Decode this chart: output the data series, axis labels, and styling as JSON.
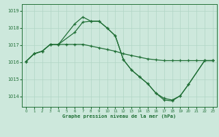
{
  "title": "Graphe pression niveau de la mer (hPa)",
  "bg_color": "#cde8dc",
  "grid_color": "#b0d4c4",
  "line_color": "#1f6e35",
  "xlim": [
    -0.5,
    23.5
  ],
  "ylim": [
    1013.4,
    1019.4
  ],
  "yticks": [
    1014,
    1015,
    1016,
    1017,
    1018,
    1019
  ],
  "xticks": [
    0,
    1,
    2,
    3,
    4,
    5,
    6,
    7,
    8,
    9,
    10,
    11,
    12,
    13,
    14,
    15,
    16,
    17,
    18,
    19,
    20,
    21,
    22,
    23
  ],
  "line1_x": [
    0,
    1,
    2,
    3,
    4,
    6,
    7,
    8,
    9,
    10,
    11,
    12,
    13,
    14,
    15,
    16,
    17,
    18,
    19,
    20,
    22,
    23
  ],
  "line1_y": [
    1016.05,
    1016.5,
    1016.65,
    1017.05,
    1017.05,
    1018.25,
    1018.65,
    1018.4,
    1018.4,
    1018.0,
    1017.55,
    1016.15,
    1015.55,
    1015.15,
    1014.75,
    1014.2,
    1013.9,
    1013.8,
    1014.05,
    1014.7,
    1016.1,
    1016.1
  ],
  "line2_x": [
    0,
    1,
    2,
    3,
    4,
    5,
    6,
    7,
    8,
    9,
    10,
    11,
    12,
    13,
    14,
    15,
    16,
    17,
    18,
    19,
    20,
    21,
    22,
    23
  ],
  "line2_y": [
    1016.05,
    1016.5,
    1016.65,
    1017.05,
    1017.05,
    1017.05,
    1017.05,
    1017.05,
    1016.95,
    1016.85,
    1016.75,
    1016.65,
    1016.5,
    1016.4,
    1016.3,
    1016.2,
    1016.15,
    1016.1,
    1016.1,
    1016.1,
    1016.1,
    1016.1,
    1016.1,
    1016.1
  ],
  "line3_x": [
    0,
    1,
    2,
    3,
    4,
    6,
    7,
    8,
    9,
    10,
    11,
    12,
    13,
    14,
    15,
    16,
    17,
    18,
    19,
    20,
    22,
    23
  ],
  "line3_y": [
    1016.05,
    1016.5,
    1016.65,
    1017.05,
    1017.05,
    1017.75,
    1018.35,
    1018.4,
    1018.4,
    1018.0,
    1017.55,
    1016.15,
    1015.55,
    1015.15,
    1014.75,
    1014.2,
    1013.8,
    1013.75,
    1014.05,
    1014.7,
    1016.1,
    1016.1
  ]
}
